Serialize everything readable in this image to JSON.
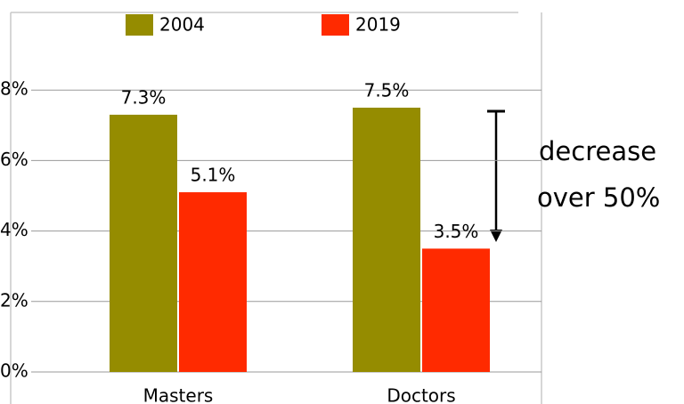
{
  "chart_data": {
    "type": "bar",
    "categories": [
      "Masters",
      "Doctors"
    ],
    "series": [
      {
        "name": "2004",
        "color": "#958c00",
        "values": [
          7.3,
          7.5
        ],
        "value_labels": [
          "7.3%",
          "7.5%"
        ]
      },
      {
        "name": "2019",
        "color": "#ff2a00",
        "values": [
          5.1,
          3.5
        ],
        "value_labels": [
          "5.1%",
          "3.5%"
        ]
      }
    ],
    "ylim": [
      0,
      10
    ],
    "yticks": [
      {
        "value": 0,
        "label": "0%"
      },
      {
        "value": 2,
        "label": "2%"
      },
      {
        "value": 4,
        "label": "4%"
      },
      {
        "value": 6,
        "label": "6%"
      },
      {
        "value": 8,
        "label": "8%"
      }
    ],
    "grid": true,
    "legend": "top",
    "annotation": [
      "decrease",
      "over 50%"
    ]
  }
}
